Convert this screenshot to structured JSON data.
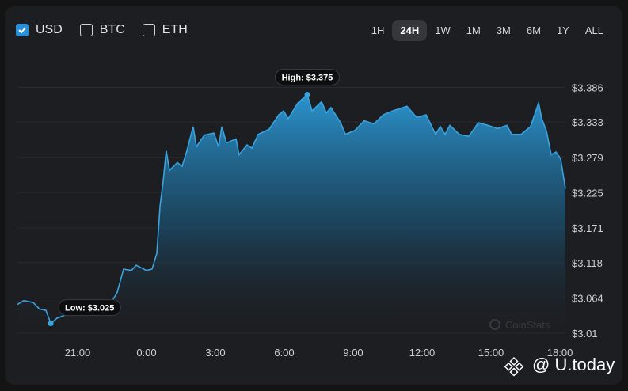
{
  "controls": {
    "currencies": [
      {
        "label": "USD",
        "checked": true
      },
      {
        "label": "BTC",
        "checked": false
      },
      {
        "label": "ETH",
        "checked": false
      }
    ],
    "ranges": [
      {
        "label": "1H",
        "active": false
      },
      {
        "label": "24H",
        "active": true
      },
      {
        "label": "1W",
        "active": false
      },
      {
        "label": "1M",
        "active": false
      },
      {
        "label": "3M",
        "active": false
      },
      {
        "label": "6M",
        "active": false
      },
      {
        "label": "1Y",
        "active": false
      },
      {
        "label": "ALL",
        "active": false
      }
    ]
  },
  "chart_data": {
    "type": "area",
    "x": [
      18.38,
      18.66,
      19.07,
      19.34,
      19.62,
      19.83,
      20.1,
      20.55,
      21.07,
      21.76,
      22.45,
      22.72,
      23.0,
      23.34,
      23.55,
      24.0,
      24.24,
      24.45,
      24.59,
      24.72,
      24.86,
      25.0,
      25.34,
      25.55,
      25.76,
      26.03,
      26.17,
      26.52,
      26.93,
      27.14,
      27.28,
      27.48,
      27.9,
      28.03,
      28.38,
      28.59,
      28.86,
      29.34,
      29.76,
      29.97,
      30.17,
      30.59,
      31.0,
      31.21,
      31.62,
      31.83,
      32.03,
      32.45,
      32.66,
      33.07,
      33.48,
      33.9,
      34.31,
      34.72,
      35.34,
      35.76,
      36.17,
      36.59,
      36.79,
      37.0,
      37.21,
      37.62,
      38.03,
      38.45,
      38.86,
      39.28,
      39.69,
      39.9,
      40.31,
      40.72,
      41.07,
      41.21,
      41.41,
      41.62,
      41.83,
      42.03,
      42.24
    ],
    "series": [
      {
        "name": "USD",
        "color": "#3aa3df",
        "values": [
          3.054,
          3.06,
          3.057,
          3.047,
          3.045,
          3.025,
          3.033,
          3.039,
          3.043,
          3.047,
          3.056,
          3.072,
          3.108,
          3.106,
          3.114,
          3.106,
          3.108,
          3.132,
          3.205,
          3.241,
          3.289,
          3.259,
          3.271,
          3.265,
          3.289,
          3.326,
          3.295,
          3.313,
          3.316,
          3.295,
          3.326,
          3.301,
          3.307,
          3.283,
          3.298,
          3.293,
          3.314,
          3.322,
          3.344,
          3.35,
          3.338,
          3.362,
          3.375,
          3.35,
          3.364,
          3.347,
          3.355,
          3.332,
          3.314,
          3.32,
          3.335,
          3.33,
          3.344,
          3.35,
          3.357,
          3.34,
          3.344,
          3.314,
          3.326,
          3.314,
          3.328,
          3.314,
          3.311,
          3.332,
          3.328,
          3.323,
          3.328,
          3.314,
          3.314,
          3.326,
          3.362,
          3.338,
          3.32,
          3.283,
          3.287,
          3.277,
          3.231
        ]
      }
    ],
    "xlim": [
      18.38,
      42.24
    ],
    "ylim": [
      3.01,
      3.43
    ],
    "xticks": [
      {
        "value": 21,
        "label": "21:00"
      },
      {
        "value": 24,
        "label": "0:00"
      },
      {
        "value": 27,
        "label": "3:00"
      },
      {
        "value": 30,
        "label": "6:00"
      },
      {
        "value": 33,
        "label": "9:00"
      },
      {
        "value": 36,
        "label": "12:00"
      },
      {
        "value": 39,
        "label": "15:00"
      },
      {
        "value": 42,
        "label": "18:00"
      }
    ],
    "yticks": [
      {
        "value": 3.386,
        "label": "$3.386"
      },
      {
        "value": 3.333,
        "label": "$3.333"
      },
      {
        "value": 3.279,
        "label": "$3.279"
      },
      {
        "value": 3.225,
        "label": "$3.225"
      },
      {
        "value": 3.171,
        "label": "$3.171"
      },
      {
        "value": 3.118,
        "label": "$3.118"
      },
      {
        "value": 3.064,
        "label": "$3.064"
      },
      {
        "value": 3.01,
        "label": "$3.01"
      }
    ],
    "grid": true,
    "annotations": [
      {
        "text": "High: $3.375",
        "x": 31.0,
        "y": 3.375,
        "side": "above"
      },
      {
        "text": "Low: $3.025",
        "x": 19.83,
        "y": 3.025,
        "side": "right"
      }
    ],
    "watermark": "CoinStats"
  },
  "credit": "@ U.today"
}
